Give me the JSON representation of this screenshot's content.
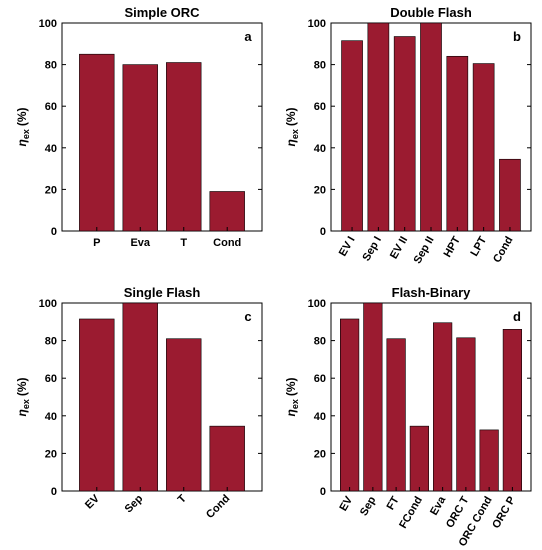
{
  "chart_data": [
    {
      "type": "bar",
      "title": "Simple ORC",
      "panel_label": "a",
      "ylabel_main": "η",
      "ylabel_sub": "ex",
      "ylabel_unit": "(%)",
      "ylim": [
        0,
        100
      ],
      "yticks": [
        "0",
        "20",
        "40",
        "60",
        "80",
        "100"
      ],
      "categories": [
        "P",
        "Eva",
        "T",
        "Cond"
      ],
      "values": [
        85,
        80,
        81,
        19
      ],
      "color": "#9b1b30",
      "xtick_rotation": 0
    },
    {
      "type": "bar",
      "title": "Double Flash",
      "panel_label": "b",
      "ylabel_main": "η",
      "ylabel_sub": "ex",
      "ylabel_unit": "(%)",
      "ylim": [
        0,
        100
      ],
      "yticks": [
        "0",
        "20",
        "40",
        "60",
        "80",
        "100"
      ],
      "categories": [
        "EV I",
        "Sep I",
        "EV II",
        "Sep II",
        "HPT",
        "LPT",
        "Cond"
      ],
      "values": [
        91.5,
        100,
        93.5,
        100,
        84,
        80.5,
        34.5
      ],
      "color": "#9b1b30",
      "xtick_rotation": -60
    },
    {
      "type": "bar",
      "title": "Single Flash",
      "panel_label": "c",
      "ylabel_main": "η",
      "ylabel_sub": "ex",
      "ylabel_unit": "(%)",
      "ylim": [
        0,
        100
      ],
      "yticks": [
        "0",
        "20",
        "40",
        "60",
        "80",
        "100"
      ],
      "categories": [
        "EV",
        "Sep",
        "T",
        "Cond"
      ],
      "values": [
        91.5,
        100,
        81,
        34.5
      ],
      "color": "#9b1b30",
      "xtick_rotation": -45
    },
    {
      "type": "bar",
      "title": "Flash-Binary",
      "panel_label": "d",
      "ylabel_main": "η",
      "ylabel_sub": "ex",
      "ylabel_unit": "(%)",
      "ylim": [
        0,
        100
      ],
      "yticks": [
        "0",
        "20",
        "40",
        "60",
        "80",
        "100"
      ],
      "categories": [
        "EV",
        "Sep",
        "FT",
        "FCond",
        "Eva",
        "ORC T",
        "ORC Cond",
        "ORC P"
      ],
      "values": [
        91.5,
        100,
        81,
        34.5,
        89.5,
        81.5,
        32.5,
        86
      ],
      "color": "#9b1b30",
      "xtick_rotation": -60
    }
  ]
}
